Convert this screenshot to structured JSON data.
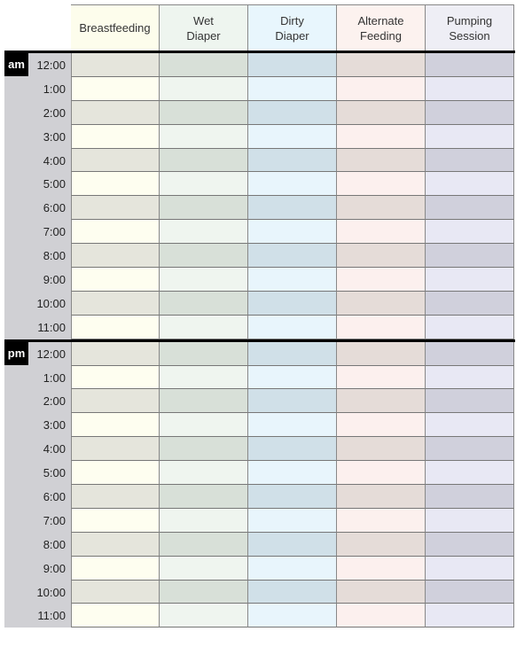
{
  "columns": [
    {
      "label": "Breastfeeding",
      "header_color": "#fdfdec",
      "dark": "#e5e5dc",
      "light": "#fefef0"
    },
    {
      "label": "Wet\nDiaper",
      "header_color": "#eef5ef",
      "dark": "#d8e0d8",
      "light": "#eff5ef"
    },
    {
      "label": "Dirty\nDiaper",
      "header_color": "#e8f6fd",
      "dark": "#d0e0e8",
      "light": "#e8f5fc"
    },
    {
      "label": "Alternate\nFeeding",
      "header_color": "#fcf2ef",
      "dark": "#e5dcd8",
      "light": "#fcf0ee"
    },
    {
      "label": "Pumping\nSession",
      "header_color": "#eeeef5",
      "dark": "#d0d0dc",
      "light": "#e8e8f4"
    }
  ],
  "sections": [
    {
      "period": "am",
      "times": [
        "12:00",
        "1:00",
        "2:00",
        "3:00",
        "4:00",
        "5:00",
        "6:00",
        "7:00",
        "8:00",
        "9:00",
        "10:00",
        "11:00"
      ]
    },
    {
      "period": "pm",
      "times": [
        "12:00",
        "1:00",
        "2:00",
        "3:00",
        "4:00",
        "5:00",
        "6:00",
        "7:00",
        "8:00",
        "9:00",
        "10:00",
        "11:00"
      ]
    }
  ]
}
